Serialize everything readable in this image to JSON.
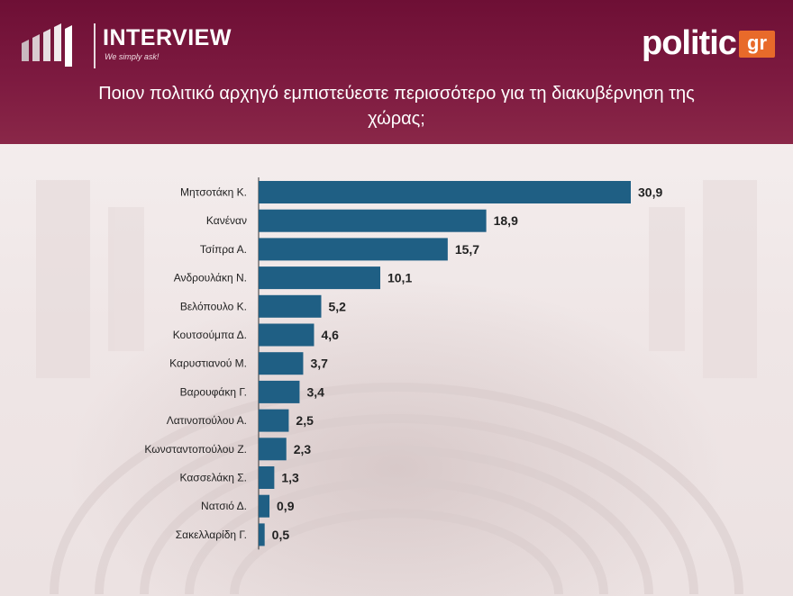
{
  "brand": {
    "left_logo": "INTERVIEW",
    "left_tagline": "We simply ask!",
    "right_logo": "politic",
    "right_logo_suffix": "gr"
  },
  "chart_data": {
    "type": "bar",
    "orientation": "horizontal",
    "title": "Ποιον πολιτικό αρχηγό εμπιστεύεστε περισσότερο για τη διακυβέρνηση της χώρας;",
    "categories": [
      "Μητσοτάκη Κ.",
      "Κανέναν",
      "Τσίπρα Α.",
      "Ανδρουλάκη Ν.",
      "Βελόπουλο Κ.",
      "Κουτσούμπα Δ.",
      "Καρυστιανού Μ.",
      "Βαρουφάκη Γ.",
      "Λατινοπούλου Α.",
      "Κωνσταντοπούλου Ζ.",
      "Κασσελάκη Σ.",
      "Νατσιό Δ.",
      "Σακελλαρίδη Γ."
    ],
    "values": [
      30.9,
      18.9,
      15.7,
      10.1,
      5.2,
      4.6,
      3.7,
      3.4,
      2.5,
      2.3,
      1.3,
      0.9,
      0.5
    ],
    "value_labels": [
      "30,9",
      "18,9",
      "15,7",
      "10,1",
      "5,2",
      "4,6",
      "3,7",
      "3,4",
      "2,5",
      "2,3",
      "1,3",
      "0,9",
      "0,5"
    ],
    "xlim": [
      0,
      30.9
    ],
    "bar_color": "#1f5f84",
    "grid": false,
    "legend": "none"
  },
  "colors": {
    "header": "#7a1840",
    "bar": "#1f5f84"
  }
}
